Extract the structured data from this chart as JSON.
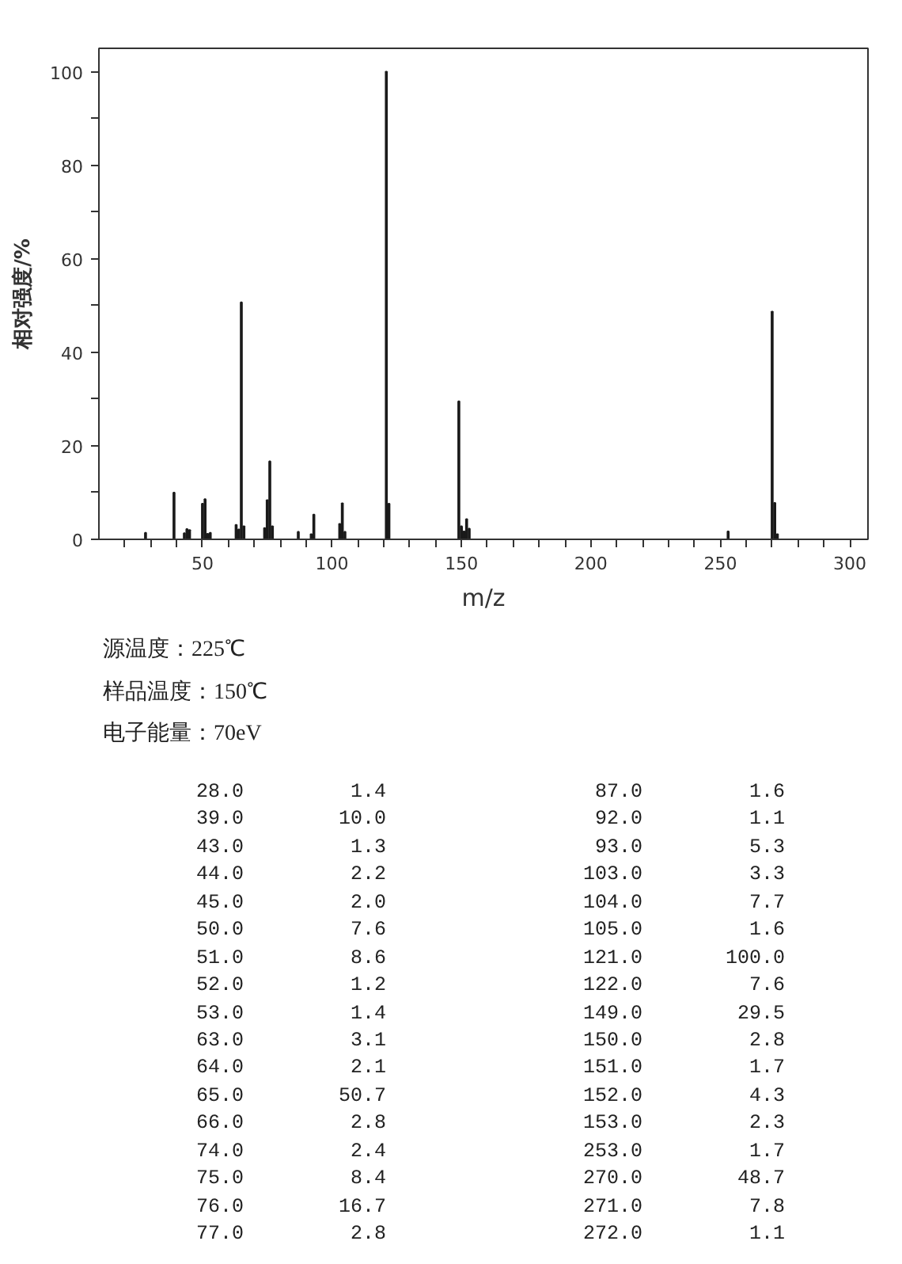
{
  "chart_data": {
    "type": "bar",
    "xlabel": "m/z",
    "ylabel": "相对强度/%",
    "color": "#1a1a1a",
    "x": [
      28,
      39,
      43,
      44,
      45,
      50,
      51,
      52,
      53,
      63,
      64,
      65,
      66,
      74,
      75,
      76,
      77,
      87,
      92,
      93,
      103,
      104,
      105,
      121,
      122,
      149,
      150,
      151,
      152,
      153,
      253,
      270,
      271,
      272
    ],
    "values": [
      1.4,
      10.0,
      1.3,
      2.2,
      2.0,
      7.6,
      8.6,
      1.2,
      1.4,
      3.1,
      2.1,
      50.7,
      2.8,
      2.4,
      8.4,
      16.7,
      2.8,
      1.6,
      1.1,
      5.3,
      3.3,
      7.7,
      1.6,
      100.0,
      7.6,
      29.5,
      2.8,
      1.7,
      4.3,
      2.3,
      1.7,
      48.7,
      7.8,
      1.1
    ],
    "xlim": [
      10,
      307
    ],
    "ylim": [
      0,
      105
    ],
    "xticks": [
      {
        "value": 20,
        "label": null
      },
      {
        "value": 30,
        "label": null
      },
      {
        "value": 40,
        "label": null
      },
      50,
      {
        "value": 60,
        "label": null
      },
      {
        "value": 70,
        "label": null
      },
      {
        "value": 80,
        "label": null
      },
      {
        "value": 90,
        "label": null
      },
      100,
      {
        "value": 110,
        "label": null
      },
      {
        "value": 120,
        "label": null
      },
      {
        "value": 130,
        "label": null
      },
      {
        "value": 140,
        "label": null
      },
      150,
      {
        "value": 160,
        "label": null
      },
      {
        "value": 170,
        "label": null
      },
      {
        "value": 180,
        "label": null
      },
      {
        "value": 190,
        "label": null
      },
      200,
      {
        "value": 210,
        "label": null
      },
      {
        "value": 220,
        "label": null
      },
      {
        "value": 230,
        "label": null
      },
      {
        "value": 240,
        "label": null
      },
      250,
      {
        "value": 260,
        "label": null
      },
      {
        "value": 270,
        "label": null
      },
      {
        "value": 280,
        "label": null
      },
      {
        "value": 290,
        "label": null
      },
      300
    ],
    "yticks": [
      0,
      {
        "value": 10,
        "label": null
      },
      20,
      {
        "value": 30,
        "label": null
      },
      40,
      {
        "value": 50,
        "label": null
      },
      60,
      {
        "value": 70,
        "label": null
      },
      80,
      {
        "value": 90,
        "label": null
      },
      100
    ],
    "annotations": [
      "源温度：225℃",
      "样品温度：150℃",
      "电子能量：70eV",
      "28.0         1.4",
      "39.0        10.0",
      "43.0         1.3",
      "44.0         2.2",
      "45.0         2.0",
      "50.0         7.6",
      "51.0         8.6",
      "52.0         1.2",
      "53.0         1.4",
      "63.0         3.1",
      "64.0         2.1",
      "65.0        50.7",
      "66.0         2.8",
      "74.0         2.4",
      "75.0         8.4",
      "76.0        16.7",
      "77.0         2.8",
      "87.0         1.6",
      "92.0         1.1",
      "93.0         5.3",
      "103.0         3.3",
      "104.0         7.7",
      "105.0         1.6",
      "121.0       100.0",
      "122.0         7.6",
      "149.0        29.5",
      "150.0         2.8",
      "151.0         1.7",
      "152.0         4.3",
      "153.0         2.3",
      "253.0         1.7",
      "270.0        48.7",
      "271.0         7.8",
      "272.0         1.1"
    ]
  }
}
